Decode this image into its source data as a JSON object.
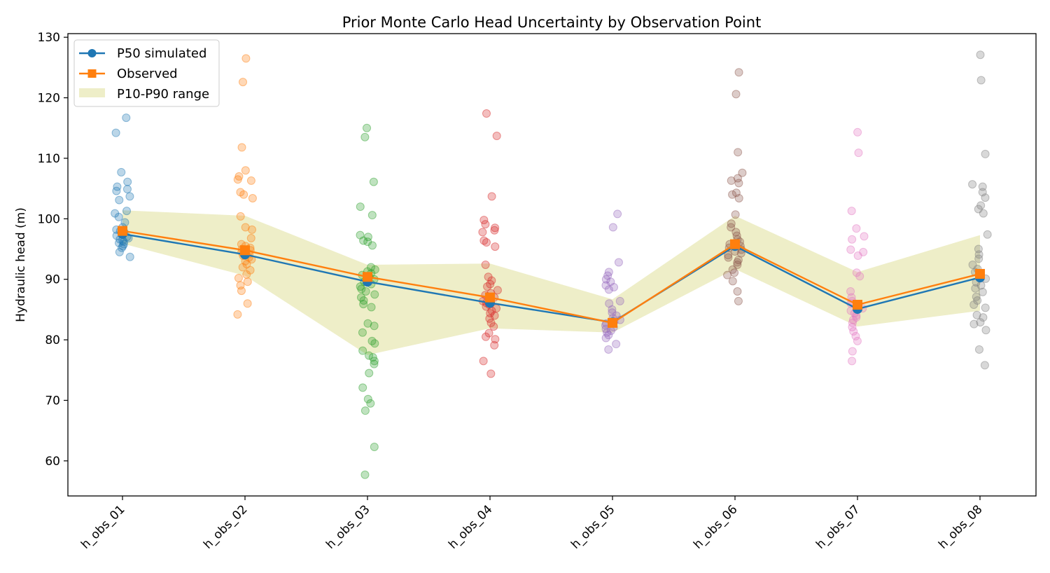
{
  "chart_data": {
    "type": "line",
    "title": "Prior Monte Carlo Head Uncertainty by Observation Point",
    "xlabel": "",
    "ylabel": "Hydraulic head (m)",
    "categories": [
      "h_obs_01",
      "h_obs_02",
      "h_obs_03",
      "h_obs_04",
      "h_obs_05",
      "h_obs_06",
      "h_obs_07",
      "h_obs_08"
    ],
    "ylim": [
      54.2,
      130.6
    ],
    "yticks": [
      60,
      70,
      80,
      90,
      100,
      110,
      120,
      130
    ],
    "grid": false,
    "legend_position": "top-left",
    "series": [
      {
        "name": "P50 simulated",
        "kind": "line-marker-circle",
        "color": "#1f77b4",
        "values": [
          97.5,
          94.1,
          89.6,
          86.1,
          82.9,
          95.5,
          85.1,
          90.3
        ]
      },
      {
        "name": "Observed",
        "kind": "line-marker-square",
        "color": "#ff7f0e",
        "values": [
          98.0,
          94.8,
          90.4,
          87.0,
          82.8,
          95.8,
          85.8,
          90.9
        ]
      }
    ],
    "band": {
      "name": "P10-P90 range",
      "color": "#bcbd22",
      "alpha": 0.25,
      "lower": [
        95.9,
        90.6,
        77.5,
        81.9,
        81.2,
        91.7,
        82.2,
        84.8
      ],
      "upper": [
        101.4,
        100.5,
        92.4,
        92.6,
        86.7,
        100.5,
        91.2,
        97.3
      ]
    },
    "samples_colors": [
      "#1f77b4",
      "#ff7f0e",
      "#2ca02c",
      "#d62728",
      "#9467bd",
      "#8c564b",
      "#e377c2",
      "#7f7f7f"
    ],
    "samples": [
      [
        116.7,
        114.2,
        107.7,
        106.1,
        105.3,
        104.9,
        104.6,
        103.7,
        103.1,
        101.3,
        100.9,
        100.3,
        99.4,
        98.6,
        98.2,
        98.0,
        97.8,
        97.6,
        97.4,
        97.2,
        97.0,
        96.8,
        96.6,
        96.4,
        96.2,
        96.0,
        95.8,
        95.5,
        95.2,
        94.5,
        93.7
      ],
      [
        126.5,
        122.6,
        111.8,
        108.0,
        107.0,
        106.5,
        106.3,
        104.4,
        104.0,
        103.4,
        100.4,
        98.6,
        98.2,
        96.8,
        95.8,
        95.5,
        95.2,
        95.0,
        94.8,
        94.5,
        94.2,
        93.9,
        93.6,
        93.3,
        93.0,
        92.5,
        92.0,
        91.5,
        90.8,
        90.2,
        89.6,
        89.0,
        88.1,
        86.0,
        84.2
      ],
      [
        115.0,
        113.5,
        106.1,
        102.0,
        100.6,
        97.3,
        97.0,
        96.4,
        96.2,
        95.6,
        92.0,
        91.6,
        91.3,
        91.0,
        90.7,
        90.4,
        90.0,
        89.6,
        89.2,
        88.8,
        88.4,
        88.0,
        87.5,
        87.0,
        86.5,
        85.9,
        85.4,
        82.7,
        82.3,
        81.2,
        79.8,
        79.4,
        78.2,
        77.4,
        77.1,
        76.5,
        76.0,
        74.5,
        72.1,
        70.2,
        69.5,
        68.3,
        62.3,
        57.7
      ],
      [
        117.4,
        113.7,
        103.7,
        99.8,
        99.1,
        98.5,
        98.1,
        97.8,
        96.4,
        96.1,
        95.4,
        92.4,
        90.4,
        89.8,
        89.2,
        88.8,
        88.2,
        87.7,
        87.4,
        87.0,
        86.7,
        86.4,
        86.1,
        85.8,
        85.5,
        85.2,
        84.8,
        84.4,
        84.0,
        83.5,
        82.8,
        82.2,
        81.1,
        80.5,
        80.1,
        79.1,
        76.5,
        74.4
      ],
      [
        100.8,
        98.6,
        92.8,
        91.2,
        90.6,
        90.0,
        89.6,
        89.0,
        88.7,
        88.3,
        86.4,
        86.0,
        85.0,
        84.5,
        84.0,
        83.6,
        83.3,
        83.0,
        82.7,
        82.4,
        82.1,
        81.8,
        81.5,
        81.2,
        80.8,
        80.3,
        79.3,
        78.4
      ],
      [
        124.2,
        120.6,
        111.0,
        107.6,
        106.7,
        106.3,
        105.9,
        104.3,
        104.0,
        103.4,
        100.7,
        99.2,
        98.6,
        97.8,
        97.2,
        96.6,
        96.2,
        95.8,
        95.5,
        95.2,
        94.9,
        94.6,
        94.3,
        94.0,
        93.6,
        93.2,
        92.8,
        92.4,
        91.6,
        91.1,
        90.7,
        89.7,
        88.0,
        86.4
      ],
      [
        114.3,
        110.9,
        101.3,
        98.4,
        97.1,
        96.6,
        94.9,
        94.5,
        93.9,
        91.1,
        90.5,
        88.0,
        87.0,
        86.4,
        86.0,
        85.6,
        85.2,
        84.8,
        84.4,
        84.0,
        83.7,
        83.3,
        82.8,
        82.1,
        81.4,
        80.6,
        79.8,
        78.1,
        76.5
      ],
      [
        127.1,
        122.9,
        110.7,
        105.7,
        105.3,
        104.4,
        103.5,
        102.2,
        101.6,
        100.9,
        97.4,
        95.0,
        94.1,
        93.4,
        92.4,
        91.7,
        91.2,
        90.6,
        90.1,
        89.5,
        89.0,
        88.5,
        87.9,
        87.1,
        86.5,
        85.8,
        85.3,
        84.1,
        83.7,
        82.9,
        82.6,
        81.6,
        78.4,
        75.8
      ]
    ]
  }
}
